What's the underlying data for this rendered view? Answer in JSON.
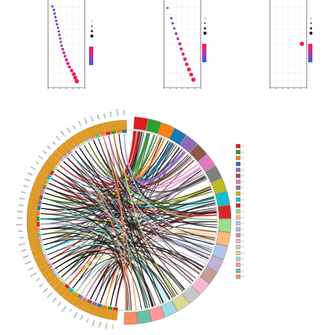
{
  "colors": {
    "panel_frame": "#222222",
    "grid": "#e6e6e6",
    "dot_blue": "#3f4fc4",
    "dot_red": "#e8123a",
    "legend_gradient": [
      "#ff1a3c",
      "#d8248a",
      "#8a3fc0",
      "#3a55d8"
    ],
    "chord_dark": "#1e1e1e",
    "outer_ring_left": "#e39a1e"
  },
  "chart_data": [
    {
      "type": "scatter",
      "panel": "dotplot-1",
      "title": "",
      "xlabel": "",
      "ylabel": "",
      "note": "text in this panel is not legible at this resolution",
      "points": [
        {
          "x": 0.12,
          "y": 1,
          "size": 2,
          "color": 0.95
        },
        {
          "x": 0.16,
          "y": 2,
          "size": 2,
          "color": 0.9
        },
        {
          "x": 0.18,
          "y": 3,
          "size": 2,
          "color": 0.85
        },
        {
          "x": 0.2,
          "y": 4,
          "size": 2,
          "color": 0.8
        },
        {
          "x": 0.22,
          "y": 5,
          "size": 2,
          "color": 0.75
        },
        {
          "x": 0.24,
          "y": 6,
          "size": 2,
          "color": 0.72
        },
        {
          "x": 0.27,
          "y": 7,
          "size": 2,
          "color": 0.68
        },
        {
          "x": 0.29,
          "y": 8,
          "size": 2,
          "color": 0.65
        },
        {
          "x": 0.31,
          "y": 9,
          "size": 2,
          "color": 0.62
        },
        {
          "x": 0.33,
          "y": 10,
          "size": 2,
          "color": 0.58
        },
        {
          "x": 0.35,
          "y": 11,
          "size": 2,
          "color": 0.55
        },
        {
          "x": 0.37,
          "y": 12,
          "size": 2,
          "color": 0.5
        },
        {
          "x": 0.4,
          "y": 13,
          "size": 2.5,
          "color": 0.45
        },
        {
          "x": 0.43,
          "y": 14,
          "size": 2.5,
          "color": 0.42
        },
        {
          "x": 0.46,
          "y": 15,
          "size": 2.5,
          "color": 0.38
        },
        {
          "x": 0.5,
          "y": 16,
          "size": 3,
          "color": 0.35
        },
        {
          "x": 0.54,
          "y": 17,
          "size": 3,
          "color": 0.3
        },
        {
          "x": 0.58,
          "y": 18,
          "size": 3,
          "color": 0.25
        },
        {
          "x": 0.64,
          "y": 19,
          "size": 3.5,
          "color": 0.2
        },
        {
          "x": 0.7,
          "y": 20,
          "size": 4,
          "color": 0.12
        },
        {
          "x": 0.74,
          "y": 21,
          "size": 4,
          "color": 0.08
        },
        {
          "x": 0.78,
          "y": 22,
          "size": 4.5,
          "color": 0.04
        }
      ],
      "ylim": [
        0,
        23
      ]
    },
    {
      "type": "scatter",
      "panel": "dotplot-2",
      "title": "",
      "xlabel": "",
      "ylabel": "",
      "points": [
        {
          "x": 0.1,
          "y": 1,
          "size": 1.5,
          "color": 0.95
        },
        {
          "x": 0.2,
          "y": 3,
          "size": 2,
          "color": 0.85
        },
        {
          "x": 0.24,
          "y": 4,
          "size": 2,
          "color": 0.8
        },
        {
          "x": 0.28,
          "y": 5,
          "size": 2,
          "color": 0.72
        },
        {
          "x": 0.33,
          "y": 6,
          "size": 2.5,
          "color": 0.62
        },
        {
          "x": 0.38,
          "y": 7,
          "size": 2.5,
          "color": 0.52
        },
        {
          "x": 0.43,
          "y": 8,
          "size": 3,
          "color": 0.42
        },
        {
          "x": 0.47,
          "y": 9,
          "size": 3,
          "color": 0.35
        },
        {
          "x": 0.52,
          "y": 10,
          "size": 3,
          "color": 0.25
        },
        {
          "x": 0.57,
          "y": 11,
          "size": 3.5,
          "color": 0.18
        },
        {
          "x": 0.62,
          "y": 12,
          "size": 3.5,
          "color": 0.12
        },
        {
          "x": 0.68,
          "y": 13,
          "size": 4,
          "color": 0.08
        },
        {
          "x": 0.74,
          "y": 14,
          "size": 4,
          "color": 0.04
        },
        {
          "x": 0.8,
          "y": 15,
          "size": 4.5,
          "color": 0.0
        }
      ],
      "ylim": [
        0,
        16
      ]
    },
    {
      "type": "scatter",
      "panel": "dotplot-3",
      "title": "",
      "xlabel": "",
      "ylabel": "",
      "points": [
        {
          "x": 0.87,
          "y": 1,
          "size": 4.5,
          "color": 0.0
        }
      ],
      "ylim": [
        0,
        2
      ]
    },
    {
      "type": "chord",
      "panel": "chord-diagram",
      "title": "",
      "gene_labels": [
        "CDT1",
        "CCNA2",
        "CDCA8",
        "NCAPH",
        "KIF2C",
        "CDK1",
        "BUB1B",
        "TTK",
        "NUSAP1",
        "CENPF",
        "CCNB1",
        "CDC20",
        "AURKA",
        "KIF11",
        "PLK1",
        "DLGAP5",
        "TOP2A",
        "NDC80",
        "ZWINT",
        "CDKN3",
        "KIF20A",
        "TPX2",
        "PRC1",
        "NCAPG",
        "RRM2",
        "CENPA",
        "MELK",
        "KIF4A",
        "KIF14",
        "NEK2",
        "CHEK1",
        "GINS2",
        "MCM4",
        "DTL",
        "RFC4",
        "TYMS",
        "FEN1",
        "PBK",
        "HJURP",
        "MCM10",
        "CENPE",
        "E2F1",
        "PTTG1",
        "CCNB2",
        "CEP55",
        "MKI67",
        "ASPM",
        "HELLS",
        "NCAPD2",
        "ESPL1"
      ],
      "term_colors": [
        "#e41a1c",
        "#2ca02c",
        "#ff7f0e",
        "#1f77b4",
        "#9467bd",
        "#8c564b",
        "#e377c2",
        "#7f7f7f",
        "#bcbd22",
        "#17becf",
        "#d62728",
        "#98df8a",
        "#ffbb78",
        "#aec7e8",
        "#c5b0d5",
        "#c49c94",
        "#f7b6d2",
        "#c7c7c7",
        "#dbdb8d",
        "#9edae5",
        "#ff9896",
        "#66c2a5",
        "#fc8d62"
      ],
      "legend_entries": 23
    }
  ]
}
